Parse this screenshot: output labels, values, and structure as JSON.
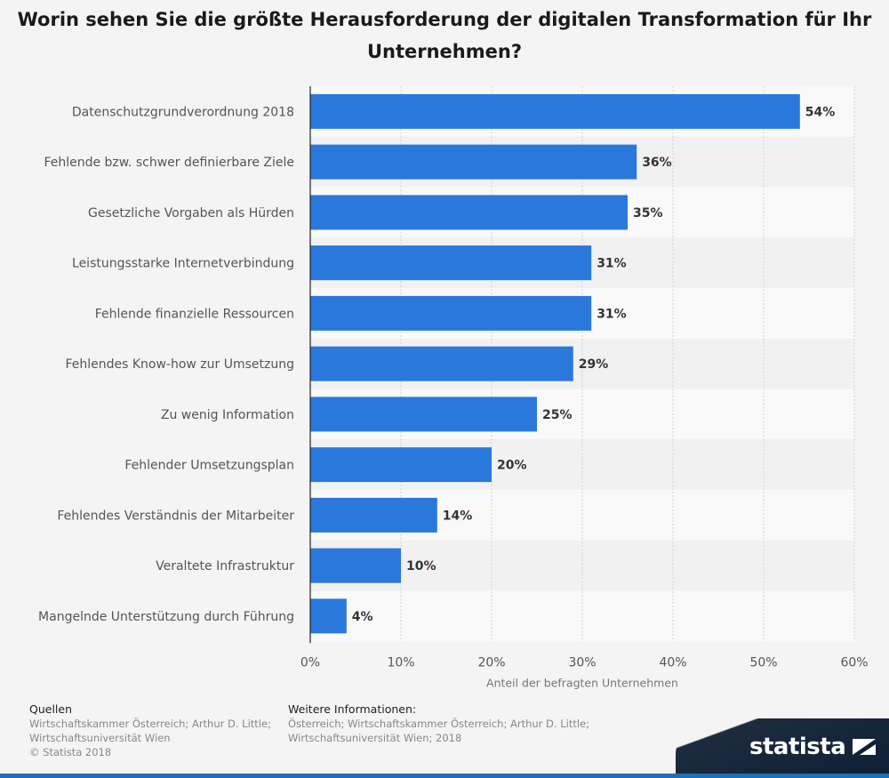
{
  "title": "Worin sehen Sie die größte Herausforderung der digitalen Transformation für Ihr Unternehmen?",
  "chart_data": {
    "type": "bar",
    "orientation": "horizontal",
    "categories": [
      "Datenschutzgrundverordnung 2018",
      "Fehlende bzw. schwer definierbare Ziele",
      "Gesetzliche Vorgaben als Hürden",
      "Leistungsstarke Internetverbindung",
      "Fehlende finanzielle Ressourcen",
      "Fehlendes Know-how zur Umsetzung",
      "Zu wenig Information",
      "Fehlender Umsetzungsplan",
      "Fehlendes Verständnis der Mitarbeiter",
      "Veraltete Infrastruktur",
      "Mangelnde Unterstützung durch Führung"
    ],
    "values": [
      54,
      36,
      35,
      31,
      31,
      29,
      25,
      20,
      14,
      10,
      4
    ],
    "value_labels": [
      "54%",
      "36%",
      "35%",
      "31%",
      "31%",
      "29%",
      "25%",
      "20%",
      "14%",
      "10%",
      "4%"
    ],
    "xlim": [
      0,
      60
    ],
    "ticks": [
      0,
      10,
      20,
      30,
      40,
      50,
      60
    ],
    "tick_labels": [
      "0%",
      "10%",
      "20%",
      "30%",
      "40%",
      "50%",
      "60%"
    ],
    "xlabel": "Anteil der befragten Unternehmen",
    "grid": true,
    "bar_color": "#2a78dc"
  },
  "footer": {
    "sources_heading": "Quellen",
    "sources_lines": [
      "Wirtschaftskammer Österreich; Arthur D. Little;",
      "Wirtschaftsuniversität Wien",
      "© Statista 2018"
    ],
    "info_heading": "Weitere Informationen:",
    "info_lines": [
      "Österreich; Wirtschaftskammer Österreich; Arthur D. Little;",
      "Wirtschaftsuniversität Wien; 2018"
    ]
  },
  "logo": {
    "text": "statista",
    "icon": "statista-flag-icon"
  }
}
